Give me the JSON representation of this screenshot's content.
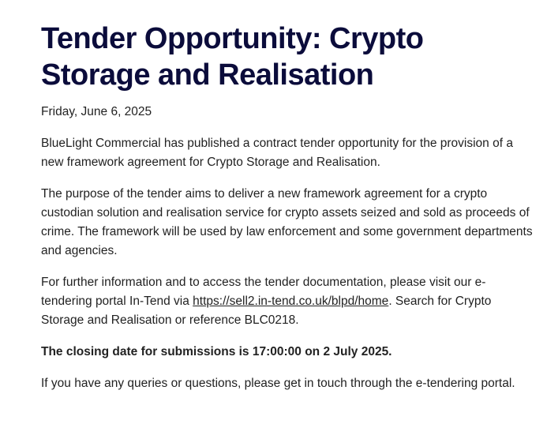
{
  "article": {
    "title": "Tender Opportunity: Crypto Storage and Realisation",
    "date": "Friday, June 6, 2025",
    "p1": "BlueLight Commercial has published a contract tender opportunity for the provision of a new framework agreement for Crypto Storage and Realisation.",
    "p2": "The purpose of the tender aims to deliver a new framework agreement for a crypto custodian solution and realisation service for crypto assets seized and sold as proceeds of crime. The framework will be used by law enforcement and some government departments and agencies.",
    "p3_before": "For further information and to access the tender documentation, please visit our e-tendering portal In-Tend via ",
    "p3_link": "https://sell2.in-tend.co.uk/blpd/home",
    "p3_after": ". Search for Crypto Storage and Realisation or reference BLC0218.",
    "closing": "The closing date for submissions is 17:00:00 on 2 July 2025.",
    "p5": "If you have any queries or questions, please get in touch through the e-tendering portal."
  },
  "colors": {
    "title": "#0b0c3b",
    "text": "#222222"
  }
}
